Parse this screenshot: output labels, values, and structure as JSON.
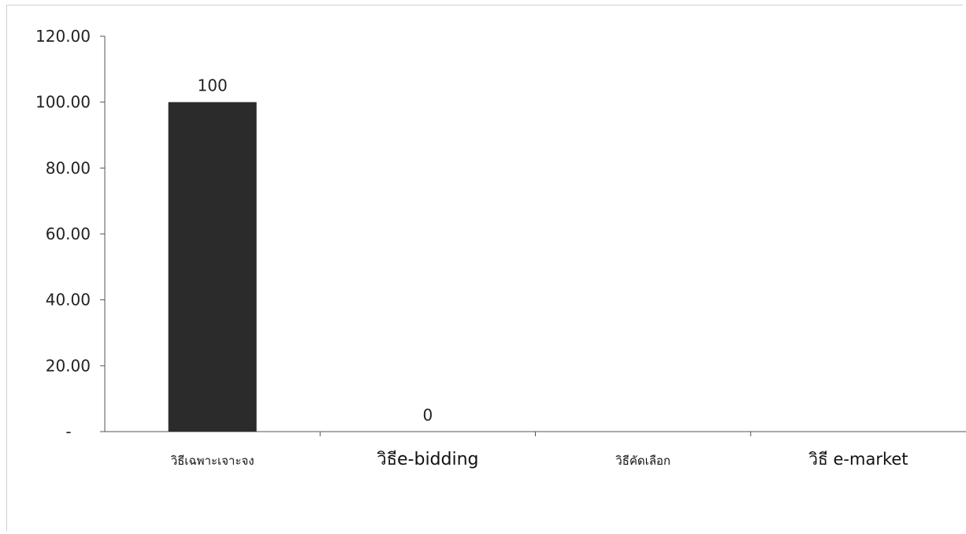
{
  "chart_data": {
    "type": "bar",
    "title": "",
    "xlabel": "",
    "ylabel": "",
    "categories": [
      "วิธีเฉพาะเจาะจง",
      "วิธีe-bidding",
      "วิธีคัดเลือก",
      "วิธี e-market"
    ],
    "values": [
      100,
      0,
      0,
      0
    ],
    "data_labels": [
      "100",
      "0",
      "",
      ""
    ],
    "ylim": [
      0,
      120
    ],
    "y_ticks": [
      0,
      20,
      40,
      60,
      80,
      100,
      120
    ],
    "y_tick_labels": [
      "-",
      "20.00",
      "40.00",
      "60.00",
      "80.00",
      "100.00",
      "120.00"
    ],
    "grid": false,
    "bar_color": "#2b2b2b",
    "axis_color": "#555555"
  }
}
